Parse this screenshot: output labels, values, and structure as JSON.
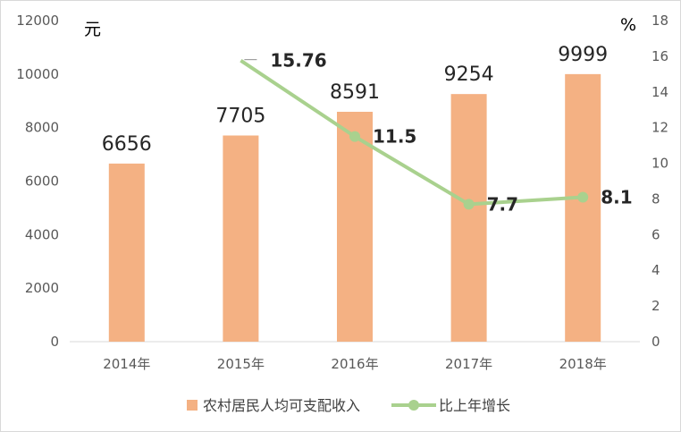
{
  "chart_data": {
    "type": "bar",
    "categories": [
      "2014年",
      "2015年",
      "2016年",
      "2017年",
      "2018年"
    ],
    "series": [
      {
        "name": "农村居民人均可支配收入",
        "type": "bar",
        "axis": "left",
        "values": [
          6656,
          7705,
          8591,
          9254,
          9999
        ],
        "labels": [
          "6656",
          "7705",
          "8591",
          "9254",
          "9999"
        ],
        "color": "#f4b183"
      },
      {
        "name": "比上年增长",
        "type": "line",
        "axis": "right",
        "values": [
          null,
          15.76,
          11.5,
          7.7,
          8.1
        ],
        "labels": [
          "",
          "15.76",
          "11.5",
          "7.7",
          "8.1"
        ],
        "color": "#a9d18e"
      }
    ],
    "left_axis": {
      "unit": "元",
      "min": 0,
      "max": 12000,
      "step": 2000
    },
    "right_axis": {
      "unit": "%",
      "min": 0,
      "max": 18,
      "step": 2
    },
    "legend_position": "bottom",
    "grid": false
  }
}
